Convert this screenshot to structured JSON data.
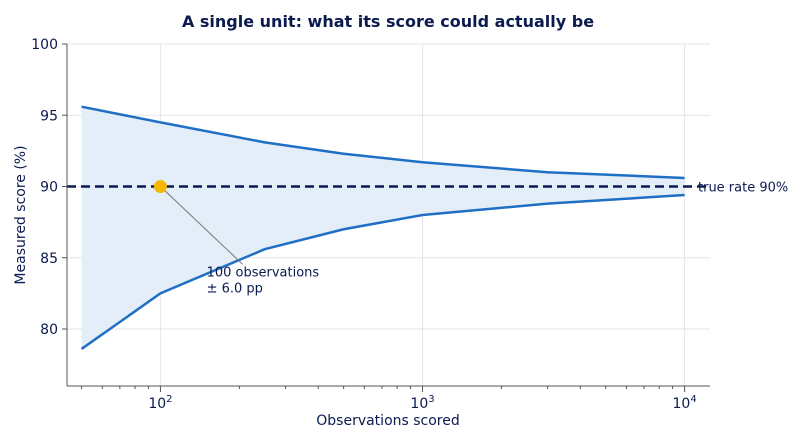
{
  "chart_data": {
    "type": "line",
    "title": "A single unit: what its score could actually be",
    "xlabel": "Observations scored",
    "ylabel": "Measured score (%)",
    "xscale": "log",
    "xlim": [
      44,
      12500
    ],
    "ylim": [
      76,
      100
    ],
    "yticks": [
      80,
      85,
      90,
      95,
      100
    ],
    "xticks": [
      {
        "value": 100,
        "base": "10",
        "exp": "2"
      },
      {
        "value": 1000,
        "base": "10",
        "exp": "3"
      },
      {
        "value": 10000,
        "base": "10",
        "exp": "4"
      }
    ],
    "grid": true,
    "colors": {
      "band_line": "#1f6fc5",
      "band_fill": "#e3eef9",
      "true_rate": "#0b1a4f",
      "highlight": "#f5b800",
      "annotation_line": "#777777"
    },
    "x": [
      50,
      100,
      250,
      500,
      1000,
      3000,
      10000
    ],
    "series": [
      {
        "values": [
          95.6,
          94.5,
          93.1,
          92.3,
          91.7,
          91.0,
          90.6
        ]
      },
      {
        "values": [
          78.6,
          82.5,
          85.6,
          87.0,
          88.0,
          88.8,
          89.4
        ]
      }
    ],
    "true_rate": {
      "value": 90,
      "label": "true rate 90%"
    },
    "highlight_point": {
      "x": 100,
      "y": 90
    },
    "annotation": {
      "line1": "100 observations",
      "line2": "± 6.0 pp",
      "x": 150,
      "y": 83.7
    }
  }
}
